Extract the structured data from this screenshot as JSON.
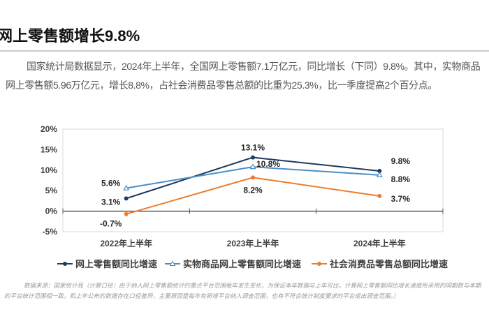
{
  "title": "网上零售额增长9.8%",
  "paragraph": "国家统计局数据显示，2024年上半年，全国网上零售额7.1万亿元，同比增长（下同）9.8%。其中，实物商品网上零售额5.96万亿元，增长8.8%，占社会消费品零售总额的比重为25.3%，比一季度提高2个百分点。",
  "footnote": "数据来源：国家统计局（计算口径：由于纳入网上零售额统计的重点平台范围每年发生变化，为保证本年数据与上年可比，计算网上零售额同比增长速度所采用的同期数与本期的平台统计范围相一致，和上年公布的数据存在口径差异，主要原因是每年有新增平台纳入调查范围，也有不符合统计制度要求的平台退出调查范围。）",
  "chart_data": {
    "type": "line",
    "categories": [
      "2022年上半年",
      "2023年上半年",
      "2024年上半年"
    ],
    "ylim": [
      -5,
      20
    ],
    "yticks": [
      "-5%",
      "0%",
      "5%",
      "10%",
      "15%",
      "20%"
    ],
    "ytick_values": [
      -5,
      0,
      5,
      10,
      15,
      20
    ],
    "grid": false,
    "legend_placement": "bottom",
    "series": [
      {
        "name": "网上零售额同比增速",
        "values": [
          3.1,
          13.1,
          9.8
        ],
        "labels": [
          "3.1%",
          "13.1%",
          "9.8%"
        ],
        "color": "#1d3a5e",
        "marker": "circle"
      },
      {
        "name": "实物商品网上零售额同比增速",
        "values": [
          5.6,
          10.8,
          8.8
        ],
        "labels": [
          "5.6%",
          "10.8%",
          "8.8%"
        ],
        "color": "#4a8fc6",
        "marker": "triangle"
      },
      {
        "name": "社会消费品零售总额同比增速",
        "values": [
          -0.7,
          8.2,
          3.7
        ],
        "labels": [
          "-0.7%",
          "8.2%",
          "3.7%"
        ],
        "color": "#ed7d31",
        "marker": "circle"
      }
    ]
  }
}
